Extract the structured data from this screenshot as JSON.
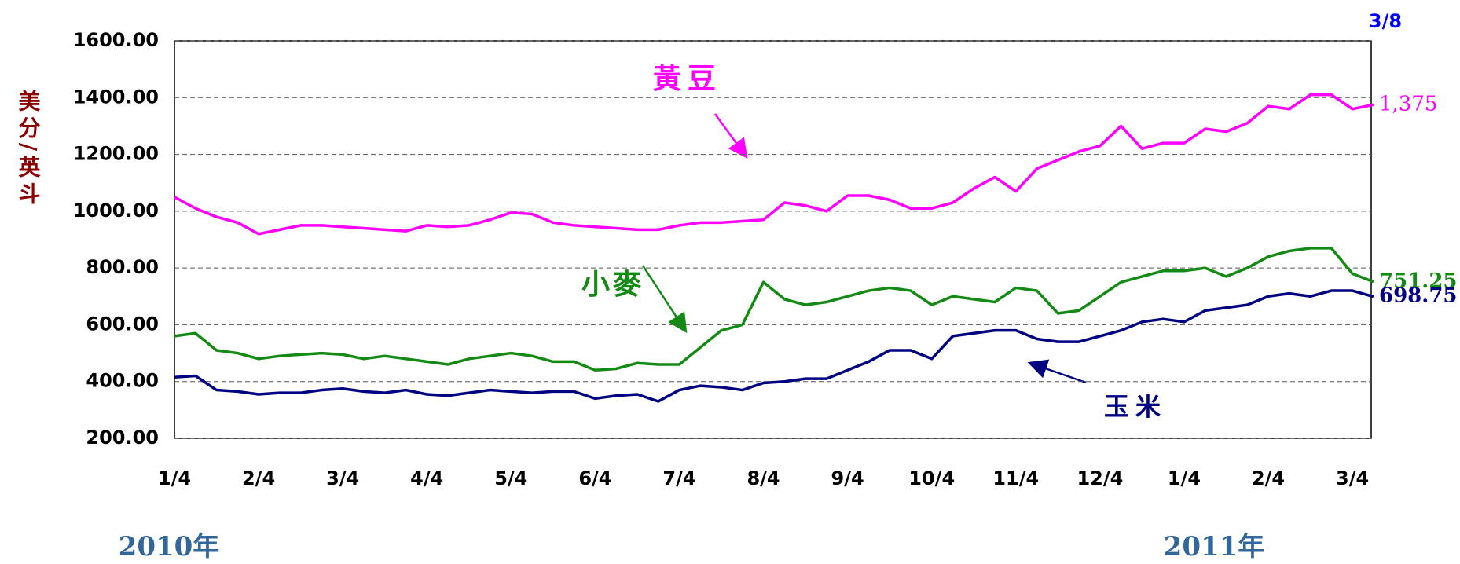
{
  "chart_data": {
    "type": "line",
    "y_label": "美分/英斗",
    "date_label": "3/8",
    "year_labels": [
      "2010年",
      "2011年"
    ],
    "categories": [
      "1/4",
      null,
      null,
      null,
      "2/4",
      null,
      null,
      null,
      "3/4",
      null,
      null,
      null,
      "4/4",
      null,
      null,
      null,
      "5/4",
      null,
      null,
      null,
      "6/4",
      null,
      null,
      null,
      "7/4",
      null,
      null,
      null,
      "8/4",
      null,
      null,
      null,
      "9/4",
      null,
      null,
      null,
      "10/4",
      null,
      null,
      null,
      "11/4",
      null,
      null,
      null,
      "12/4",
      null,
      null,
      null,
      "1/4",
      null,
      null,
      null,
      "2/4",
      null,
      null,
      null,
      "3/4",
      null
    ],
    "ylim": [
      200,
      1600
    ],
    "yticks": [
      {
        "value": 200,
        "label": "200.00"
      },
      {
        "value": 400,
        "label": "400.00"
      },
      {
        "value": 600,
        "label": "600.00"
      },
      {
        "value": 800,
        "label": "800.00"
      },
      {
        "value": 1000,
        "label": "1000.00"
      },
      {
        "value": 1200,
        "label": "1200.00"
      },
      {
        "value": 1400,
        "label": "1400.00"
      },
      {
        "value": 1600,
        "label": "1600.00"
      }
    ],
    "grid": true,
    "series": [
      {
        "name": "黃豆",
        "color": "#ff00ff",
        "values": [
          1050,
          1010,
          980,
          960,
          920,
          935,
          950,
          950,
          945,
          940,
          935,
          930,
          950,
          945,
          950,
          970,
          995,
          990,
          960,
          950,
          945,
          940,
          935,
          935,
          950,
          960,
          960,
          965,
          970,
          1030,
          1020,
          1000,
          1055,
          1055,
          1040,
          1010,
          1010,
          1030,
          1080,
          1120,
          1070,
          1150,
          1180,
          1210,
          1230,
          1300,
          1220,
          1240,
          1240,
          1290,
          1280,
          1310,
          1370,
          1360,
          1410,
          1410,
          1360,
          1375
        ],
        "value_labels": [
          null,
          null,
          null,
          null,
          null,
          null,
          null,
          null,
          null,
          null,
          null,
          null,
          null,
          null,
          null,
          null,
          null,
          null,
          null,
          null,
          null,
          null,
          null,
          null,
          null,
          null,
          null,
          null,
          null,
          null,
          null,
          null,
          null,
          null,
          null,
          null,
          null,
          null,
          null,
          null,
          null,
          null,
          null,
          null,
          null,
          null,
          null,
          null,
          null,
          null,
          null,
          null,
          null,
          null,
          null,
          null,
          null,
          "1,375"
        ]
      },
      {
        "name": "小麥",
        "color": "#138a13",
        "values": [
          560,
          570,
          510,
          500,
          480,
          490,
          495,
          500,
          495,
          480,
          490,
          480,
          470,
          460,
          480,
          490,
          500,
          490,
          470,
          470,
          440,
          445,
          465,
          460,
          460,
          520,
          580,
          600,
          750,
          690,
          670,
          680,
          700,
          720,
          730,
          720,
          670,
          700,
          690,
          680,
          730,
          720,
          640,
          650,
          700,
          750,
          770,
          790,
          790,
          800,
          770,
          800,
          840,
          860,
          870,
          870,
          780,
          751.25
        ],
        "value_labels": [
          null,
          null,
          null,
          null,
          null,
          null,
          null,
          null,
          null,
          null,
          null,
          null,
          null,
          null,
          null,
          null,
          null,
          null,
          null,
          null,
          null,
          null,
          null,
          null,
          null,
          null,
          null,
          null,
          null,
          null,
          null,
          null,
          null,
          null,
          null,
          null,
          null,
          null,
          null,
          null,
          null,
          null,
          null,
          null,
          null,
          null,
          null,
          null,
          null,
          null,
          null,
          null,
          null,
          null,
          null,
          null,
          null,
          "751.25"
        ]
      },
      {
        "name": "玉米",
        "color": "#000080",
        "values": [
          415,
          420,
          370,
          365,
          355,
          360,
          360,
          370,
          375,
          365,
          360,
          370,
          355,
          350,
          360,
          370,
          365,
          360,
          365,
          365,
          340,
          350,
          355,
          330,
          370,
          385,
          380,
          370,
          395,
          400,
          410,
          410,
          440,
          470,
          510,
          510,
          480,
          560,
          570,
          580,
          580,
          550,
          540,
          540,
          560,
          580,
          610,
          620,
          610,
          650,
          660,
          670,
          700,
          710,
          700,
          720,
          720,
          698.75
        ],
        "value_labels": [
          null,
          null,
          null,
          null,
          null,
          null,
          null,
          null,
          null,
          null,
          null,
          null,
          null,
          null,
          null,
          null,
          null,
          null,
          null,
          null,
          null,
          null,
          null,
          null,
          null,
          null,
          null,
          null,
          null,
          null,
          null,
          null,
          null,
          null,
          null,
          null,
          null,
          null,
          null,
          null,
          null,
          null,
          null,
          null,
          null,
          null,
          null,
          null,
          null,
          null,
          null,
          null,
          null,
          null,
          null,
          null,
          null,
          "698.75"
        ]
      }
    ]
  }
}
